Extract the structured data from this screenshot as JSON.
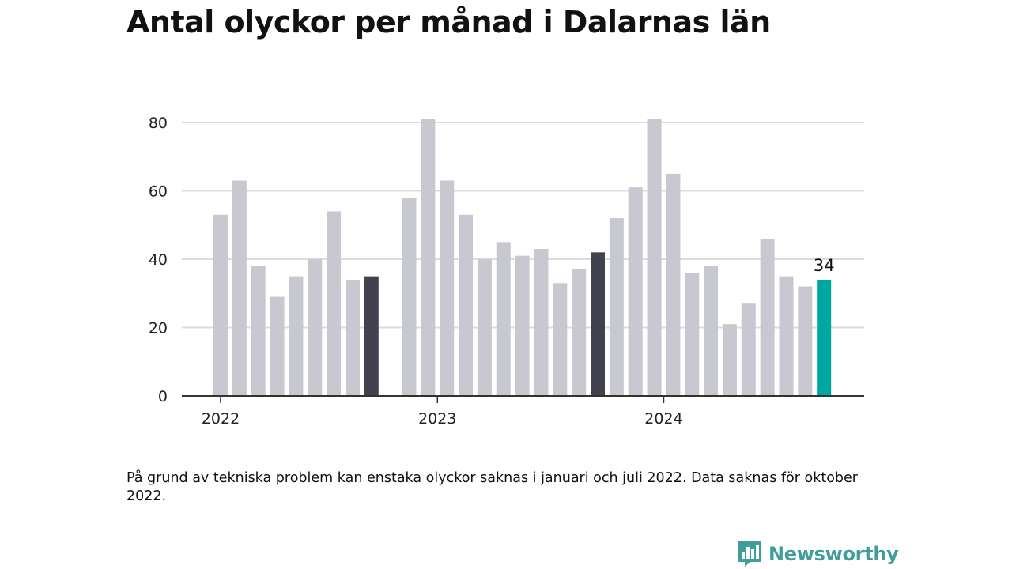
{
  "header": {
    "title": "Antal olyckor per månad i Dalarnas län"
  },
  "chart_data": {
    "type": "bar",
    "title": "Antal olyckor per månad i Dalarnas län",
    "xlabel": "",
    "ylabel": "",
    "ylim": [
      0,
      80
    ],
    "yticks": [
      0,
      20,
      40,
      60,
      80
    ],
    "grid": true,
    "year_labels": [
      {
        "label": "2022",
        "index": 0
      },
      {
        "label": "2023",
        "index": 12
      },
      {
        "label": "2024",
        "index": 24
      }
    ],
    "categories": [
      "2022-01",
      "2022-02",
      "2022-03",
      "2022-04",
      "2022-05",
      "2022-06",
      "2022-07",
      "2022-08",
      "2022-09",
      "2022-10",
      "2022-11",
      "2022-12",
      "2023-01",
      "2023-02",
      "2023-03",
      "2023-04",
      "2023-05",
      "2023-06",
      "2023-07",
      "2023-08",
      "2023-09",
      "2023-10",
      "2023-11",
      "2023-12",
      "2024-01",
      "2024-02",
      "2024-03",
      "2024-04",
      "2024-05",
      "2024-06",
      "2024-07",
      "2024-08",
      "2024-09"
    ],
    "values": [
      53,
      63,
      38,
      29,
      35,
      40,
      54,
      34,
      35,
      null,
      58,
      81,
      63,
      53,
      40,
      45,
      41,
      43,
      33,
      37,
      42,
      52,
      61,
      81,
      65,
      36,
      38,
      21,
      27,
      46,
      35,
      32,
      34
    ],
    "highlight": {
      "2022-09": "#41414f",
      "2023-09": "#41414f",
      "2024-09": "#00a6a0"
    },
    "base_color": "#c8c8d0",
    "annotations": [
      {
        "category": "2024-09",
        "text": "34"
      }
    ]
  },
  "footnote": "På grund av tekniska problem kan enstaka olyckor saknas i januari och juli 2022. Data saknas för oktober 2022.",
  "brand": {
    "name": "Newsworthy",
    "color": "#3f9e9a"
  }
}
